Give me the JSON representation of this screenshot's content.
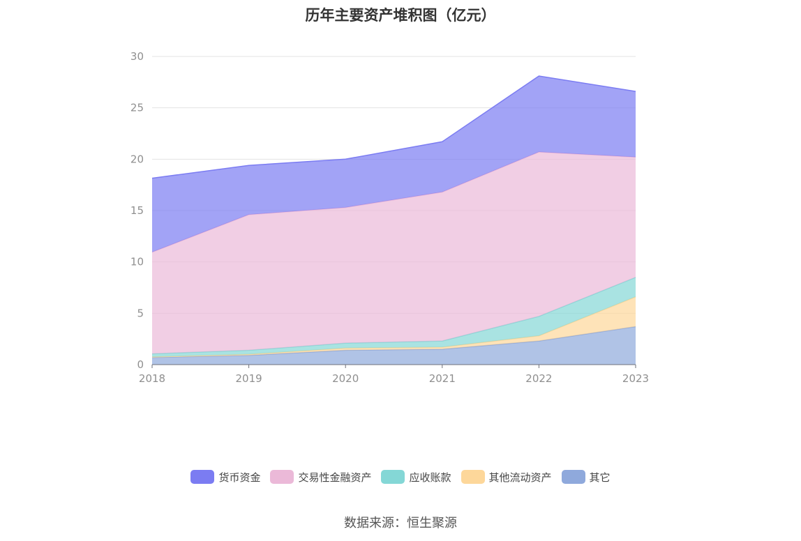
{
  "source": "数据来源：恒生聚源",
  "chart_data": {
    "type": "area",
    "stacked": true,
    "title": "历年主要资产堆积图（亿元）",
    "xlabel": "",
    "ylabel": "",
    "x": [
      "2018",
      "2019",
      "2020",
      "2021",
      "2022",
      "2023"
    ],
    "ylim": [
      0,
      30
    ],
    "yticks": [
      "0",
      "5",
      "10",
      "15",
      "20",
      "25",
      "30"
    ],
    "grid": true,
    "legend_position": "bottom",
    "series": [
      {
        "name": "其它",
        "color": "#8fa9dc",
        "values": [
          0.7,
          0.9,
          1.4,
          1.5,
          2.3,
          3.7
        ]
      },
      {
        "name": "其他流动资产",
        "color": "#fdd79a",
        "values": [
          0.05,
          0.1,
          0.2,
          0.2,
          0.5,
          2.9
        ]
      },
      {
        "name": "应收账款",
        "color": "#84d7d6",
        "values": [
          0.3,
          0.4,
          0.5,
          0.6,
          1.9,
          1.9
        ]
      },
      {
        "name": "交易性金融资产",
        "color": "#ebb9d8",
        "values": [
          9.9,
          13.2,
          13.2,
          14.5,
          16.0,
          11.7
        ]
      },
      {
        "name": "货币资金",
        "color": "#7b7cf2",
        "values": [
          7.2,
          4.8,
          4.7,
          4.9,
          7.4,
          6.4
        ]
      }
    ],
    "legend_order": [
      "货币资金",
      "交易性金融资产",
      "应收账款",
      "其他流动资产",
      "其它"
    ]
  }
}
